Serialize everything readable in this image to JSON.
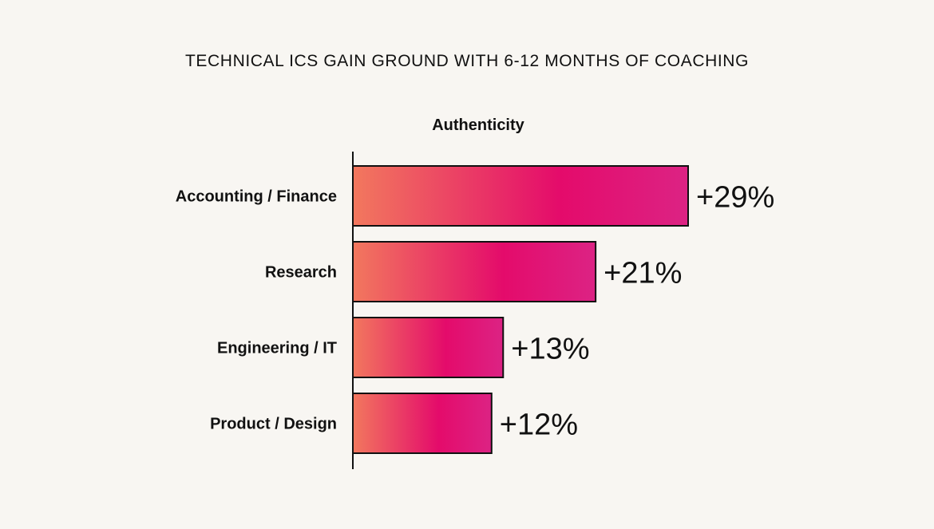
{
  "chart_data": {
    "type": "bar",
    "orientation": "horizontal",
    "title": "TECHNICAL ICS GAIN GROUND WITH 6-12 MONTHS OF COACHING",
    "subtitle": "Authenticity",
    "categories": [
      "Accounting / Finance",
      "Research",
      "Engineering / IT",
      "Product / Design"
    ],
    "values": [
      29,
      21,
      13,
      12
    ],
    "value_labels": [
      "+29%",
      "+21%",
      "+13%",
      "+12%"
    ],
    "unit": "%",
    "xlim": [
      0,
      29
    ],
    "grid": false,
    "legend": "none"
  },
  "colors": {
    "background": "#f8f6f2",
    "bar_start": "#f2785e",
    "bar_mid": "#e40b6b",
    "bar_end": "#dc2384",
    "text": "#111111"
  }
}
